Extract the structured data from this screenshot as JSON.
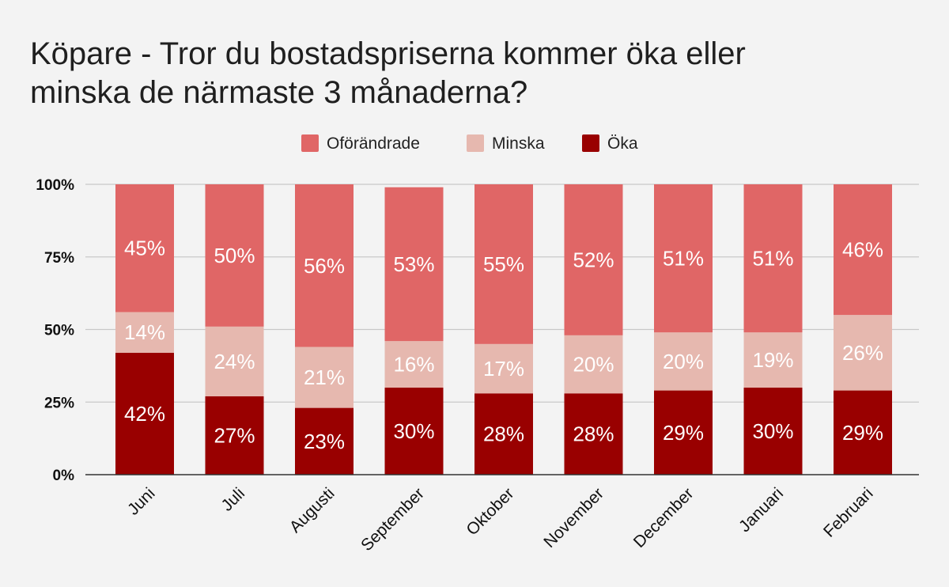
{
  "chart_data": {
    "type": "bar",
    "stacked": true,
    "title_lines": [
      "Köpare - Tror du bostadspriserna kommer öka eller",
      "minska de närmaste 3 månaderna?"
    ],
    "categories": [
      "Juni",
      "Juli",
      "Augusti",
      "September",
      "Oktober",
      "November",
      "December",
      "Januari",
      "Februari"
    ],
    "series": [
      {
        "name": "Öka",
        "color": "#990000",
        "values": [
          42,
          27,
          23,
          30,
          28,
          28,
          29,
          30,
          29
        ]
      },
      {
        "name": "Minska",
        "color": "#e6b8af",
        "values": [
          14,
          24,
          21,
          16,
          17,
          20,
          20,
          19,
          26
        ]
      },
      {
        "name": "Oförändrade",
        "color": "#e06666",
        "values": [
          45,
          50,
          56,
          53,
          55,
          52,
          51,
          51,
          46
        ]
      }
    ],
    "legend_order": [
      "Oförändrade",
      "Minska",
      "Öka"
    ],
    "legend_position": "top",
    "y_ticks": [
      "0%",
      "25%",
      "50%",
      "75%",
      "100%"
    ],
    "ylim": [
      0,
      100
    ],
    "grid": true,
    "xlabel": "",
    "ylabel": ""
  }
}
